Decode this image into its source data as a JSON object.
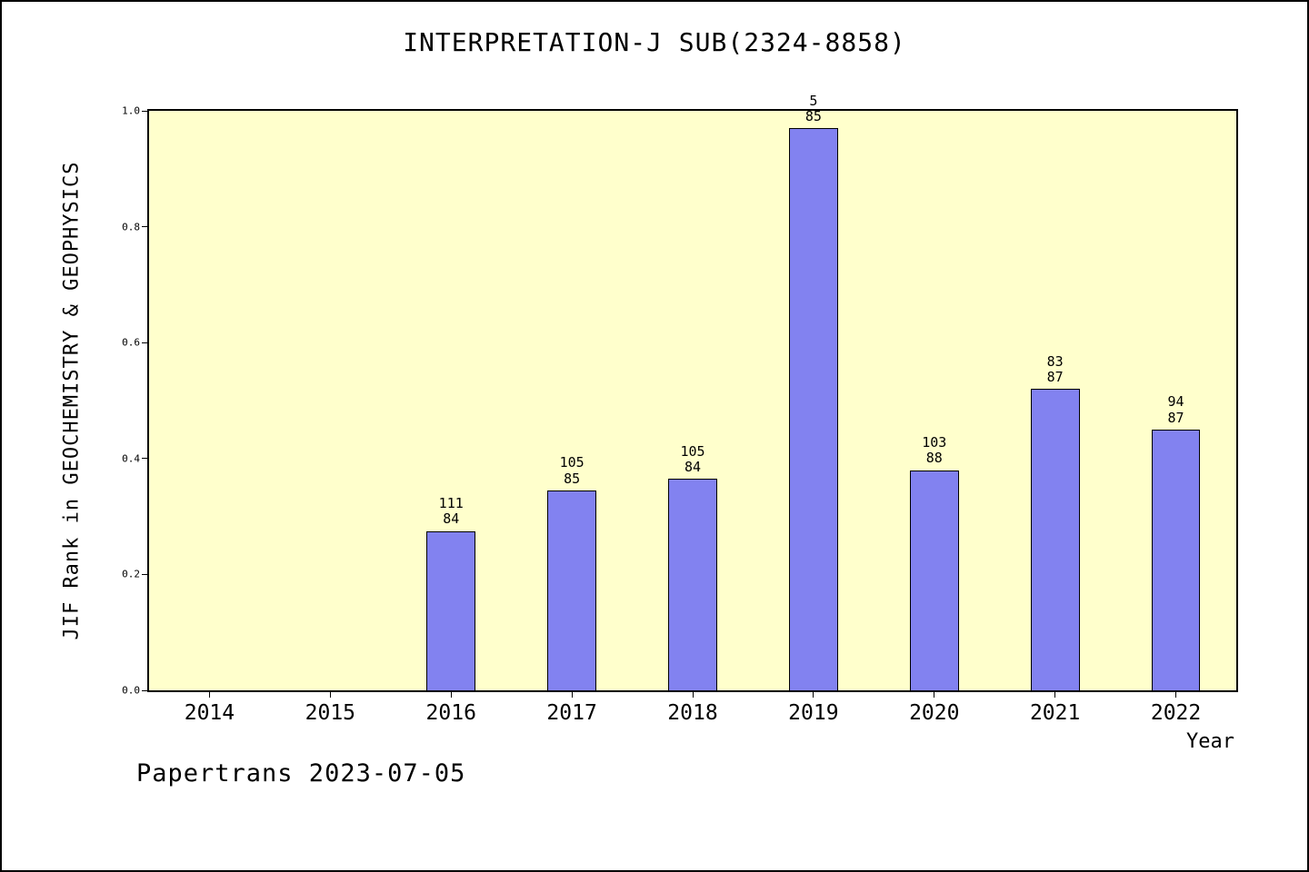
{
  "footer": "Papertrans 2023-07-05",
  "chart_data": {
    "type": "bar",
    "title": "INTERPRETATION-J SUB(2324-8858)",
    "xlabel": "Year",
    "ylabel": "JIF Rank in GEOCHEMISTRY & GEOPHYSICS",
    "categories": [
      "2014",
      "2015",
      "2016",
      "2017",
      "2018",
      "2019",
      "2020",
      "2021",
      "2022"
    ],
    "values": [
      null,
      null,
      0.275,
      0.345,
      0.365,
      0.97,
      0.38,
      0.52,
      0.45
    ],
    "bar_labels": [
      null,
      null,
      [
        "111",
        "84"
      ],
      [
        "105",
        "85"
      ],
      [
        "105",
        "84"
      ],
      [
        "5",
        "85"
      ],
      [
        "103",
        "88"
      ],
      [
        "83",
        "87"
      ],
      [
        "94",
        "87"
      ]
    ],
    "ylim": [
      0.0,
      1.0
    ],
    "yticks": [
      "0.0",
      "0.2",
      "0.4",
      "0.6",
      "0.8",
      "1.0"
    ],
    "grid": false,
    "legend": null,
    "bar_width_pct": 4.5,
    "colors": {
      "bar_fill": "#8282f0",
      "bar_edge": "#000000",
      "plot_bg": "#ffffcc",
      "page_bg": "#ffffff",
      "text": "#000000"
    }
  }
}
